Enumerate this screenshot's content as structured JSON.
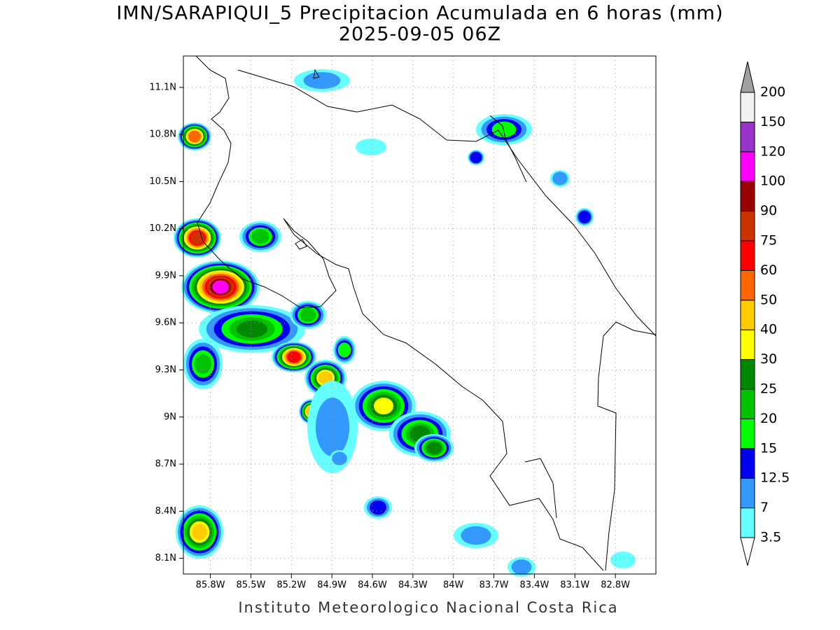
{
  "header": {
    "title": "IMN/SARAPIQUI_5 Precipitacion Acumulada en 6 horas (mm)",
    "subtitle": "2025-09-05 06Z"
  },
  "map": {
    "lat_range": [
      8.0,
      11.3
    ],
    "lon_range": [
      86.0,
      82.5
    ],
    "lat_ticks": [
      {
        "value": 11.1,
        "label": "11.1N"
      },
      {
        "value": 10.8,
        "label": "10.8N"
      },
      {
        "value": 10.5,
        "label": "10.5N"
      },
      {
        "value": 10.2,
        "label": "10.2N"
      },
      {
        "value": 9.9,
        "label": "9.9N"
      },
      {
        "value": 9.6,
        "label": "9.6N"
      },
      {
        "value": 9.3,
        "label": "9.3N"
      },
      {
        "value": 9,
        "label": "9N"
      },
      {
        "value": 8.7,
        "label": "8.7N"
      },
      {
        "value": 8.4,
        "label": "8.4N"
      },
      {
        "value": 8.1,
        "label": "8.1N"
      }
    ],
    "lon_ticks": [
      {
        "value": 85.8,
        "label": "85.8W"
      },
      {
        "value": 85.5,
        "label": "85.5W"
      },
      {
        "value": 85.2,
        "label": "85.2W"
      },
      {
        "value": 84.9,
        "label": "84.9W"
      },
      {
        "value": 84.6,
        "label": "84.6W"
      },
      {
        "value": 84.3,
        "label": "84.3W"
      },
      {
        "value": 84,
        "label": "84W"
      },
      {
        "value": 83.7,
        "label": "83.7W"
      },
      {
        "value": 83.4,
        "label": "83.4W"
      },
      {
        "value": 83.1,
        "label": "83.1W"
      },
      {
        "value": 82.8,
        "label": "82.8W"
      }
    ],
    "grid": true
  },
  "colorbar": {
    "levels": [
      3.5,
      7,
      12.5,
      15,
      20,
      25,
      30,
      40,
      50,
      60,
      75,
      90,
      100,
      120,
      150,
      200
    ],
    "colors": [
      "#66ffff",
      "#3399ff",
      "#0000ee",
      "#00ff00",
      "#00c400",
      "#008800",
      "#ffff00",
      "#ffcc00",
      "#ff6600",
      "#ff0000",
      "#cc3300",
      "#990000",
      "#ff00ff",
      "#9933cc",
      "#f2f2f2",
      "#a0a0a0"
    ],
    "under_color": "#ffffff"
  },
  "footer": "Instituto Meteorologico Nacional Costa Rica"
}
